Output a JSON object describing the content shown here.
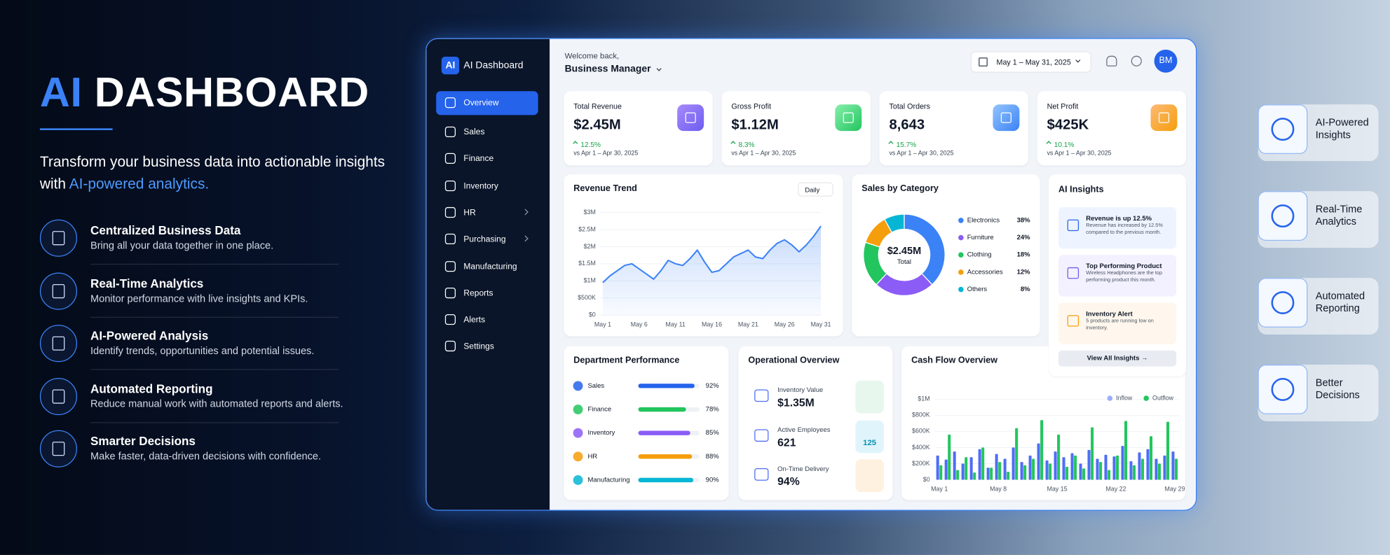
{
  "hero": {
    "title_accent": "AI",
    "title_rest": "DASHBOARD",
    "subtitle_1": "Transform your business data into actionable insights",
    "subtitle_2": "with",
    "subtitle_accent": "AI-powered analytics.",
    "features": [
      {
        "title": "Centralized Business Data",
        "text": "Bring all your data together in one place."
      },
      {
        "title": "Real-Time Analytics",
        "text": "Monitor performance with live insights and KPIs."
      },
      {
        "title": "AI-Powered Analysis",
        "text": "Identify trends, opportunities and potential issues."
      },
      {
        "title": "Automated Reporting",
        "text": "Reduce manual work with automated reports and alerts."
      },
      {
        "title": "Smarter Decisions",
        "text": "Make faster, data-driven decisions with confidence."
      }
    ]
  },
  "sidebar": {
    "logo": "AI",
    "brand": "AI Dashboard",
    "items": [
      "Overview",
      "Sales",
      "Finance",
      "Inventory",
      "HR",
      "Purchasing",
      "Manufacturing",
      "Reports",
      "Alerts",
      "Settings"
    ]
  },
  "header": {
    "welcome": "Welcome back,",
    "user": "Business Manager",
    "date_range": "May 1 – May 31, 2025",
    "avatar": "BM"
  },
  "kpis": [
    {
      "label": "Total Revenue",
      "value": "$2.45M",
      "change": "12.5%",
      "compare": "vs Apr 1 – Apr 30, 2025"
    },
    {
      "label": "Gross Profit",
      "value": "$1.12M",
      "change": "8.3%",
      "compare": "vs Apr 1 – Apr 30, 2025"
    },
    {
      "label": "Total Orders",
      "value": "8,643",
      "change": "15.7%",
      "compare": "vs Apr 1 – Apr 30, 2025"
    },
    {
      "label": "Net Profit",
      "value": "$425K",
      "change": "10.1%",
      "compare": "vs Apr 1 – Apr 30, 2025"
    }
  ],
  "chart_data": [
    {
      "type": "line",
      "title": "Revenue Trend",
      "control": "Daily",
      "categories": [
        "May 1",
        null,
        null,
        null,
        null,
        "May 6",
        null,
        null,
        null,
        null,
        "May 11",
        null,
        null,
        null,
        null,
        "May 16",
        null,
        null,
        null,
        null,
        "May 21",
        null,
        null,
        null,
        null,
        "May 26",
        null,
        null,
        null,
        null,
        "May 31"
      ],
      "values": [
        950000,
        1150000,
        1300000,
        1450000,
        1500000,
        1350000,
        1200000,
        1050000,
        1300000,
        1600000,
        1500000,
        1450000,
        1650000,
        1900000,
        1550000,
        1250000,
        1300000,
        1500000,
        1700000,
        1800000,
        1900000,
        1700000,
        1650000,
        1900000,
        2100000,
        2200000,
        2050000,
        1850000,
        2050000,
        2300000,
        2600000
      ],
      "color": "#3b82f6",
      "ylim": [
        0,
        3000000
      ],
      "yticks": [
        {
          "value": 0,
          "label": "$0"
        },
        {
          "value": 500000,
          "label": "$500K"
        },
        {
          "value": 1000000,
          "label": "$1M"
        },
        {
          "value": 1500000,
          "label": "$1.5M"
        },
        {
          "value": 2000000,
          "label": "$2M"
        },
        {
          "value": 2500000,
          "label": "$2.5M"
        },
        {
          "value": 3000000,
          "label": "$3M"
        }
      ]
    },
    {
      "type": "donut",
      "title": "Sales by Category",
      "center_value": "$2.45M",
      "center_label": "Total",
      "categories": [
        "Electronics",
        "Furniture",
        "Clothing",
        "Accessories",
        "Others"
      ],
      "values": [
        38,
        24,
        18,
        12,
        8
      ],
      "value_labels": [
        "38%",
        "24%",
        "18%",
        "12%",
        "8%"
      ],
      "colors": [
        "#3b82f6",
        "#8b5cf6",
        "#22c55e",
        "#f59e0b",
        "#06b6d4"
      ]
    },
    {
      "type": "hbar",
      "title": "Department Performance",
      "categories": [
        "Sales",
        "Finance",
        "Inventory",
        "HR",
        "Manufacturing"
      ],
      "values": [
        92,
        78,
        85,
        88,
        90
      ],
      "value_labels": [
        "92%",
        "78%",
        "85%",
        "88%",
        "90%"
      ],
      "colors": [
        "#2563eb",
        "#22c55e",
        "#8b5cf6",
        "#f59e0b",
        "#06b6d4"
      ],
      "xlim": [
        0,
        100
      ]
    },
    {
      "type": "bar",
      "title": "Cash Flow Overview",
      "categories": [
        "May 1",
        null,
        null,
        null,
        null,
        null,
        null,
        "May 8",
        null,
        null,
        null,
        null,
        null,
        null,
        "May 15",
        null,
        null,
        null,
        null,
        null,
        null,
        "May 22",
        null,
        null,
        null,
        null,
        null,
        null,
        "May 29"
      ],
      "series": [
        {
          "name": "Inflow",
          "color": "#4f6df5",
          "values": [
            300000,
            250000,
            350000,
            200000,
            280000,
            380000,
            150000,
            320000,
            260000,
            400000,
            220000,
            300000,
            450000,
            240000,
            350000,
            280000,
            330000,
            200000,
            370000,
            260000,
            310000,
            290000,
            420000,
            230000,
            340000,
            380000,
            260000,
            300000,
            350000
          ]
        },
        {
          "name": "Outflow",
          "color": "#22c55e",
          "values": [
            180000,
            560000,
            120000,
            280000,
            90000,
            400000,
            150000,
            220000,
            100000,
            640000,
            180000,
            260000,
            740000,
            200000,
            560000,
            160000,
            300000,
            140000,
            650000,
            220000,
            120000,
            300000,
            730000,
            180000,
            260000,
            540000,
            200000,
            720000,
            260000
          ]
        }
      ],
      "ylim": [
        0,
        1000000
      ],
      "yticks": [
        {
          "value": 0,
          "label": "$0"
        },
        {
          "value": 200000,
          "label": "$200K"
        },
        {
          "value": 400000,
          "label": "$400K"
        },
        {
          "value": 600000,
          "label": "$600K"
        },
        {
          "value": 800000,
          "label": "$800K"
        },
        {
          "value": 1000000,
          "label": "$1M"
        }
      ]
    }
  ],
  "ai_insights": {
    "title": "AI Insights",
    "items": [
      {
        "title": "Revenue is up 12.5%",
        "text": "Revenue has increased by 12.5% compared to the previous month."
      },
      {
        "title": "Top Performing Product",
        "text": "Wireless Headphones are the top performing product this month."
      },
      {
        "title": "Inventory Alert",
        "text": "5 products are running low on inventory."
      }
    ],
    "button": "View All Insights →"
  },
  "operational": {
    "title": "Operational Overview",
    "items": [
      {
        "label": "Inventory Value",
        "value": "$1.35M"
      },
      {
        "label": "Active Employees",
        "value": "621"
      },
      {
        "label": "On-Time Delivery",
        "value": "94%"
      }
    ],
    "badge": "125"
  },
  "badges": [
    "AI-Powered Insights",
    "Real-Time Analytics",
    "Automated Reporting",
    "Better Decisions"
  ]
}
